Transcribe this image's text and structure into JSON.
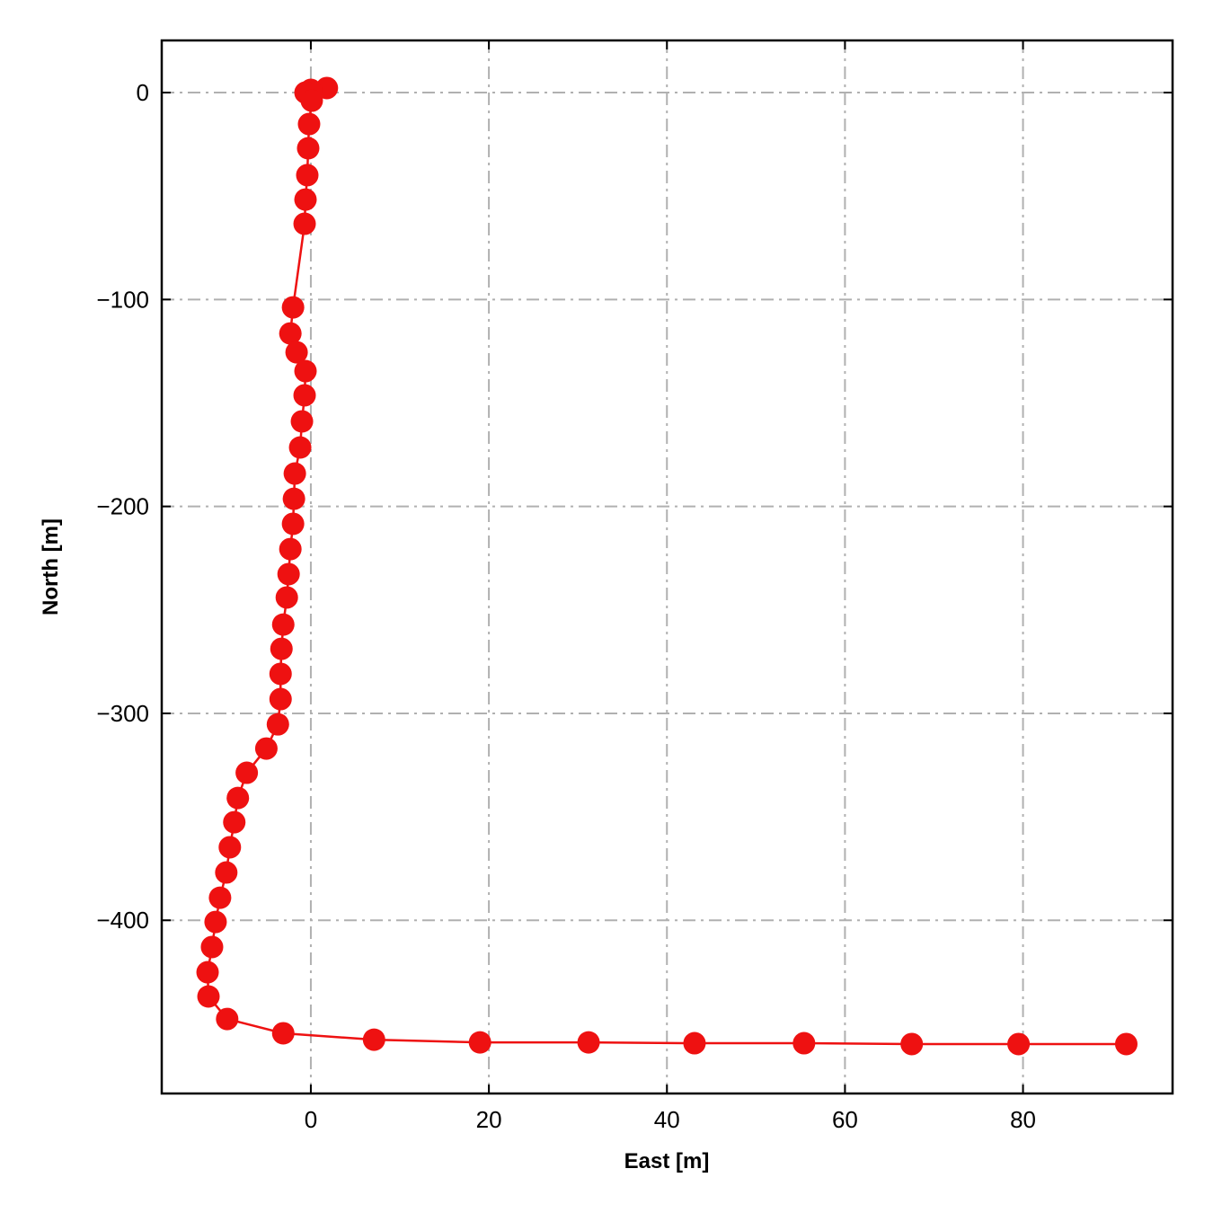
{
  "chart_data": {
    "type": "line",
    "x_label": "East [m]",
    "y_label": "North [m]",
    "color": "#ee1111",
    "marker": true,
    "grid": true,
    "xlim": [
      -16.75,
      96.8
    ],
    "ylim": [
      -483.7,
      25.2
    ],
    "xticks": [
      0,
      20,
      40,
      60,
      80
    ],
    "yticks": [
      0,
      {
        "value": -100,
        "label": "−100"
      },
      {
        "value": -200,
        "label": "−200"
      },
      {
        "value": -300,
        "label": "−300"
      },
      {
        "value": -400,
        "label": "−400"
      }
    ],
    "x": [
      1.8,
      0,
      -0.6,
      0.1,
      -0.2,
      -0.3,
      -0.4,
      -0.6,
      -0.7,
      -2.0,
      -2.3,
      -1.6,
      -0.6,
      -0.7,
      -1.0,
      -1.2,
      -1.8,
      -1.9,
      -2.0,
      -2.3,
      -2.5,
      -2.7,
      -3.1,
      -3.3,
      -3.4,
      -3.4,
      -3.7,
      -5.0,
      -7.2,
      -8.2,
      -8.6,
      -9.1,
      -9.5,
      -10.2,
      -10.7,
      -11.1,
      -11.6,
      -11.5,
      -9.4,
      -3.1,
      7.1,
      19.0,
      31.2,
      43.1,
      55.4,
      67.5,
      79.5,
      91.6
    ],
    "values": [
      2.2,
      1.3,
      0,
      -3.9,
      -15.2,
      -26.9,
      -39.9,
      -51.7,
      -63.4,
      -103.8,
      -116.4,
      -125.5,
      -134.6,
      -146.3,
      -158.9,
      -171.5,
      -184.1,
      -196.3,
      -208.4,
      -220.6,
      -232.7,
      -244.0,
      -257.1,
      -268.8,
      -280.9,
      -293.1,
      -305.3,
      -317.0,
      -328.7,
      -340.9,
      -352.6,
      -364.7,
      -376.9,
      -389.1,
      -400.8,
      -412.9,
      -425.1,
      -436.8,
      -447.7,
      -454.6,
      -457.7,
      -459.0,
      -459.0,
      -459.4,
      -459.4,
      -459.8,
      -459.8,
      -459.8
    ]
  }
}
